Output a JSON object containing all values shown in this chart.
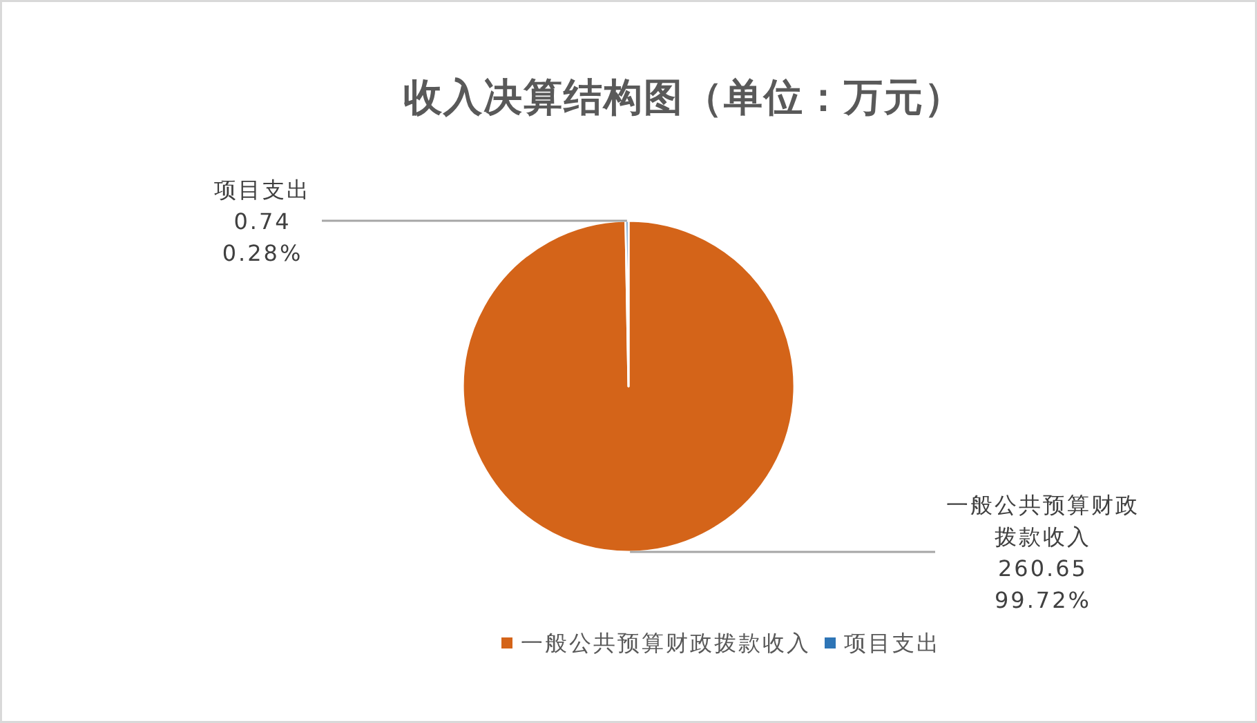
{
  "chart_data": {
    "type": "pie",
    "title": "收入决算结构图（单位：万元）",
    "categories": [
      "一般公共预算财政拨款收入",
      "项目支出"
    ],
    "values": [
      260.65,
      0.74
    ],
    "colors": [
      "#d46419",
      "#2e75b6"
    ],
    "value_labels": [
      "260.65\n99.72%",
      "0.74\n0.28%"
    ],
    "legend": "bottom"
  }
}
